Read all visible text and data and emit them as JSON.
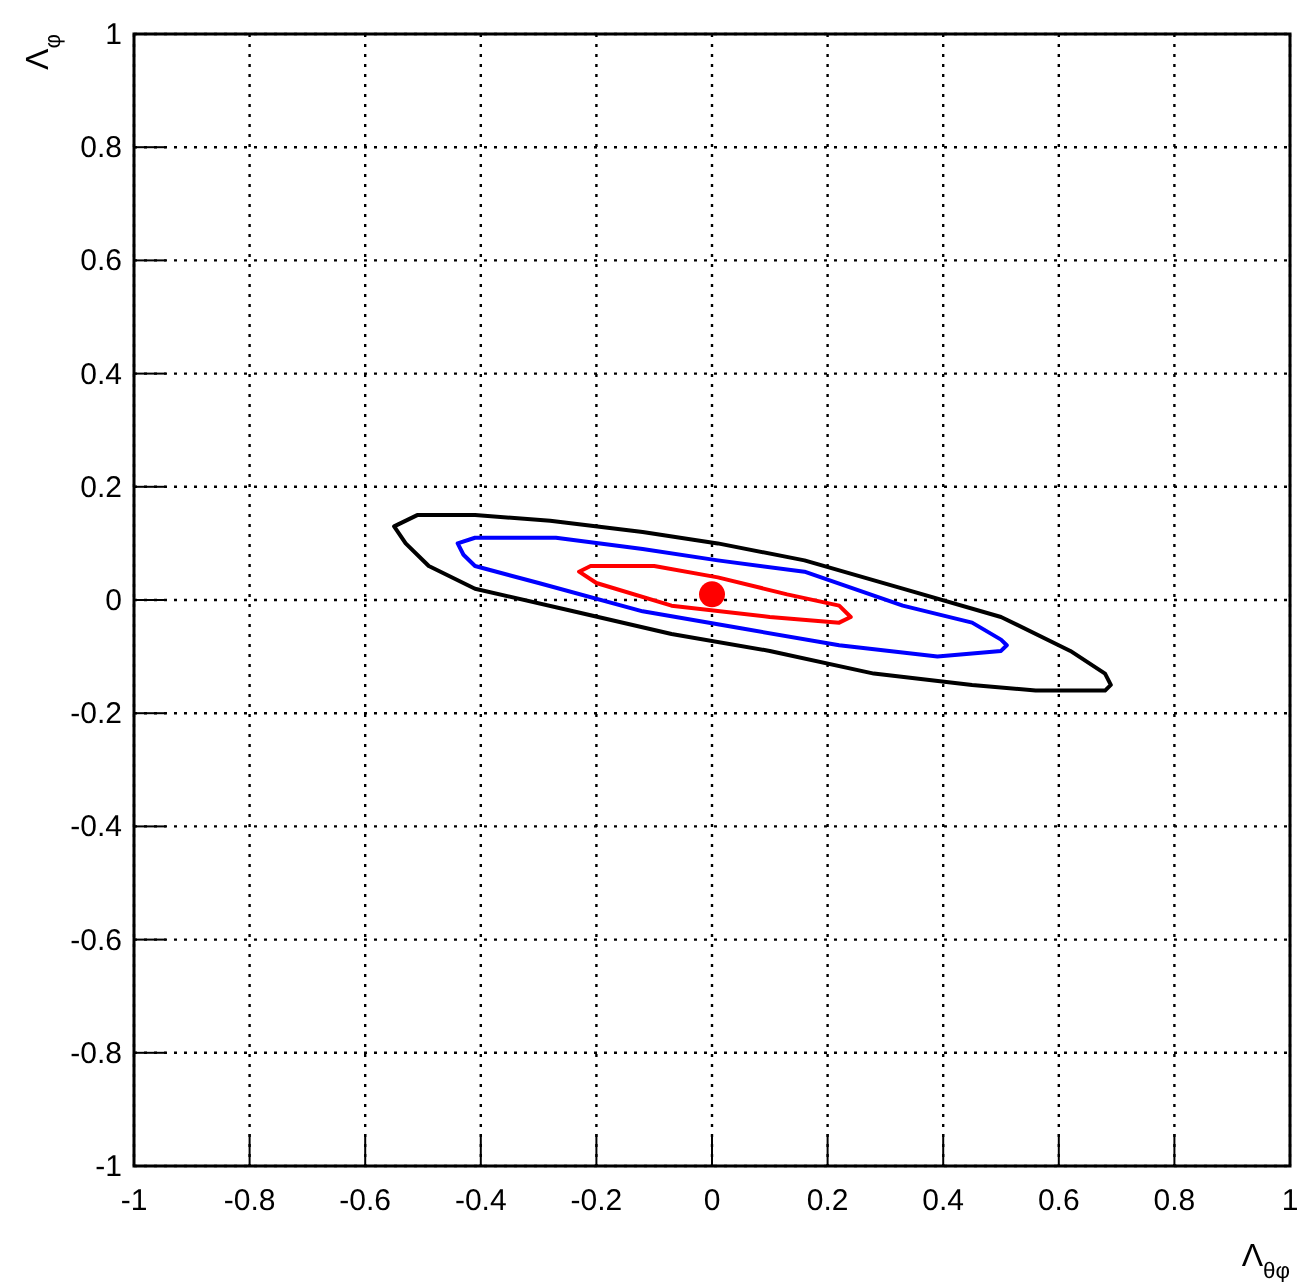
{
  "chart_data": {
    "type": "scatter",
    "xlabel": "Λ$_{θφ}$",
    "ylabel": "Λ$_{φ}$",
    "xlim": [
      -1,
      1
    ],
    "ylim": [
      -1,
      1
    ],
    "xticks": [
      -1,
      -0.8,
      -0.6,
      -0.4,
      -0.2,
      0,
      0.2,
      0.4,
      0.6,
      0.8,
      1
    ],
    "yticks": [
      -1,
      -0.8,
      -0.6,
      -0.4,
      -0.2,
      0,
      0.2,
      0.4,
      0.6,
      0.8,
      1
    ],
    "grid": true,
    "marker": "circle",
    "series": [
      {
        "color": "#ff0000",
        "x": [
          0
        ],
        "values": [
          0.01
        ]
      }
    ]
  }
}
